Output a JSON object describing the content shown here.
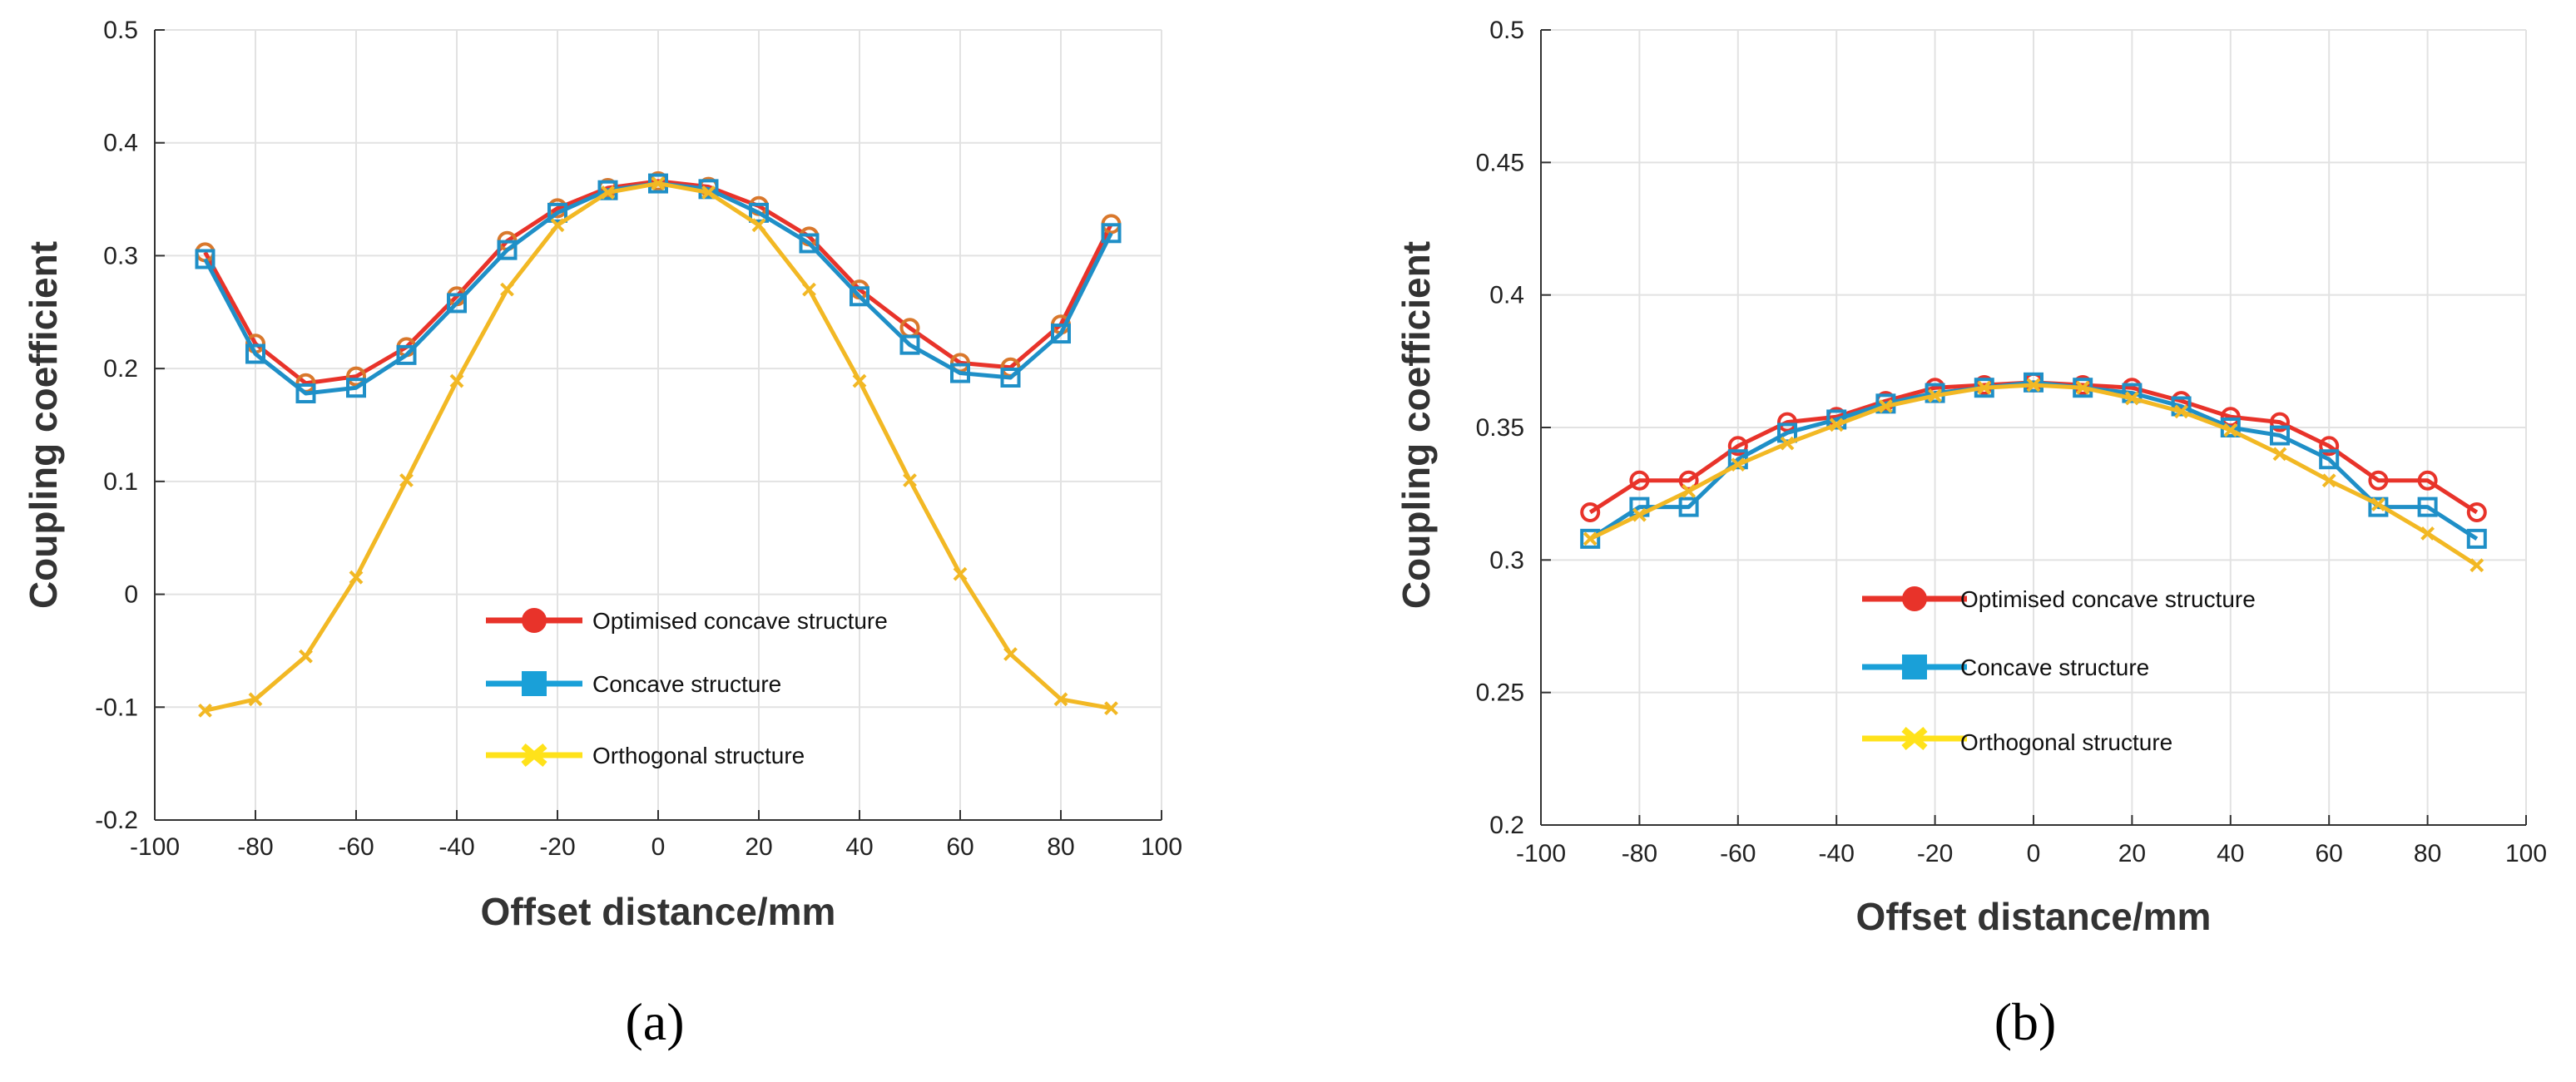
{
  "colors": {
    "optimised": "#e8332a",
    "optimised_marker": "#d9782c",
    "concave": "#1f8fc7",
    "orthogonal": "#f2b824",
    "legend_optimised_line": "#e8332a",
    "legend_concave_line": "#1aa0d8",
    "legend_orthogonal_line": "#ffe21a"
  },
  "chart_data": [
    {
      "type": "line",
      "panel_label": "(a)",
      "xlabel": "Offset distance/mm",
      "ylabel": "Coupling coefficient",
      "xlim": [
        -100,
        100
      ],
      "ylim": [
        -0.2,
        0.5
      ],
      "xticks": [
        -100,
        -80,
        -60,
        -40,
        -20,
        0,
        20,
        40,
        60,
        80,
        100
      ],
      "xtick_labels": [
        "-100",
        "-80",
        "-60",
        "-40",
        "-20",
        "0",
        "20",
        "40",
        "60",
        "80",
        "100"
      ],
      "yticks": [
        -0.2,
        -0.1,
        0,
        0.1,
        0.2,
        0.3,
        0.4,
        0.5
      ],
      "ytick_labels": [
        "-0.2",
        "-0.1",
        "0",
        "0.1",
        "0.2",
        "0.3",
        "0.4",
        "0.5"
      ],
      "grid": true,
      "legend_position": "center-right",
      "x": [
        -90,
        -80,
        -70,
        -60,
        -50,
        -40,
        -30,
        -20,
        -10,
        0,
        10,
        20,
        30,
        40,
        50,
        60,
        70,
        80,
        90
      ],
      "series": [
        {
          "key": "optimised",
          "name": "Optimised concave structure",
          "marker": "circle",
          "values": [
            0.303,
            0.222,
            0.187,
            0.193,
            0.219,
            0.264,
            0.313,
            0.342,
            0.36,
            0.366,
            0.361,
            0.344,
            0.317,
            0.27,
            0.236,
            0.205,
            0.201,
            0.239,
            0.328
          ]
        },
        {
          "key": "concave",
          "name": "Concave structure",
          "marker": "square",
          "values": [
            0.297,
            0.213,
            0.178,
            0.183,
            0.212,
            0.258,
            0.305,
            0.338,
            0.358,
            0.364,
            0.359,
            0.338,
            0.311,
            0.264,
            0.221,
            0.196,
            0.192,
            0.231,
            0.32
          ]
        },
        {
          "key": "orthogonal",
          "name": "Orthogonal structure",
          "marker": "x",
          "values": [
            -0.103,
            -0.093,
            -0.055,
            0.015,
            0.101,
            0.189,
            0.27,
            0.327,
            0.356,
            0.364,
            0.356,
            0.327,
            0.27,
            0.189,
            0.101,
            0.018,
            -0.053,
            -0.093,
            -0.101
          ]
        }
      ]
    },
    {
      "type": "line",
      "panel_label": "(b)",
      "xlabel": "Offset distance/mm",
      "ylabel": "Coupling coefficient",
      "xlim": [
        -100,
        100
      ],
      "ylim": [
        0.2,
        0.5
      ],
      "xticks": [
        -100,
        -80,
        -60,
        -40,
        -20,
        0,
        20,
        40,
        60,
        80,
        100
      ],
      "xtick_labels": [
        "-100",
        "-80",
        "-60",
        "-40",
        "-20",
        "0",
        "20",
        "40",
        "60",
        "80",
        "100"
      ],
      "yticks": [
        0.2,
        0.25,
        0.3,
        0.35,
        0.4,
        0.45,
        0.5
      ],
      "ytick_labels": [
        "0.2",
        "0.25",
        "0.3",
        "0.35",
        "0.4",
        "0.45",
        "0.5"
      ],
      "grid": true,
      "legend_position": "center",
      "x": [
        -90,
        -80,
        -70,
        -60,
        -50,
        -40,
        -30,
        -20,
        -10,
        0,
        10,
        20,
        30,
        40,
        50,
        60,
        70,
        80,
        90
      ],
      "series": [
        {
          "key": "optimised",
          "name": "Optimised concave structure",
          "marker": "circle",
          "values": [
            0.318,
            0.33,
            0.33,
            0.343,
            0.352,
            0.354,
            0.36,
            0.365,
            0.366,
            0.367,
            0.366,
            0.365,
            0.36,
            0.354,
            0.352,
            0.343,
            0.33,
            0.33,
            0.318
          ]
        },
        {
          "key": "concave",
          "name": "Concave structure",
          "marker": "square",
          "values": [
            0.308,
            0.32,
            0.32,
            0.338,
            0.348,
            0.353,
            0.359,
            0.363,
            0.365,
            0.367,
            0.365,
            0.363,
            0.358,
            0.35,
            0.347,
            0.338,
            0.32,
            0.32,
            0.308
          ]
        },
        {
          "key": "orthogonal",
          "name": "Orthogonal structure",
          "marker": "x",
          "values": [
            0.308,
            0.317,
            0.326,
            0.336,
            0.344,
            0.351,
            0.358,
            0.362,
            0.365,
            0.366,
            0.365,
            0.361,
            0.356,
            0.349,
            0.34,
            0.33,
            0.321,
            0.31,
            0.298
          ]
        }
      ]
    }
  ]
}
